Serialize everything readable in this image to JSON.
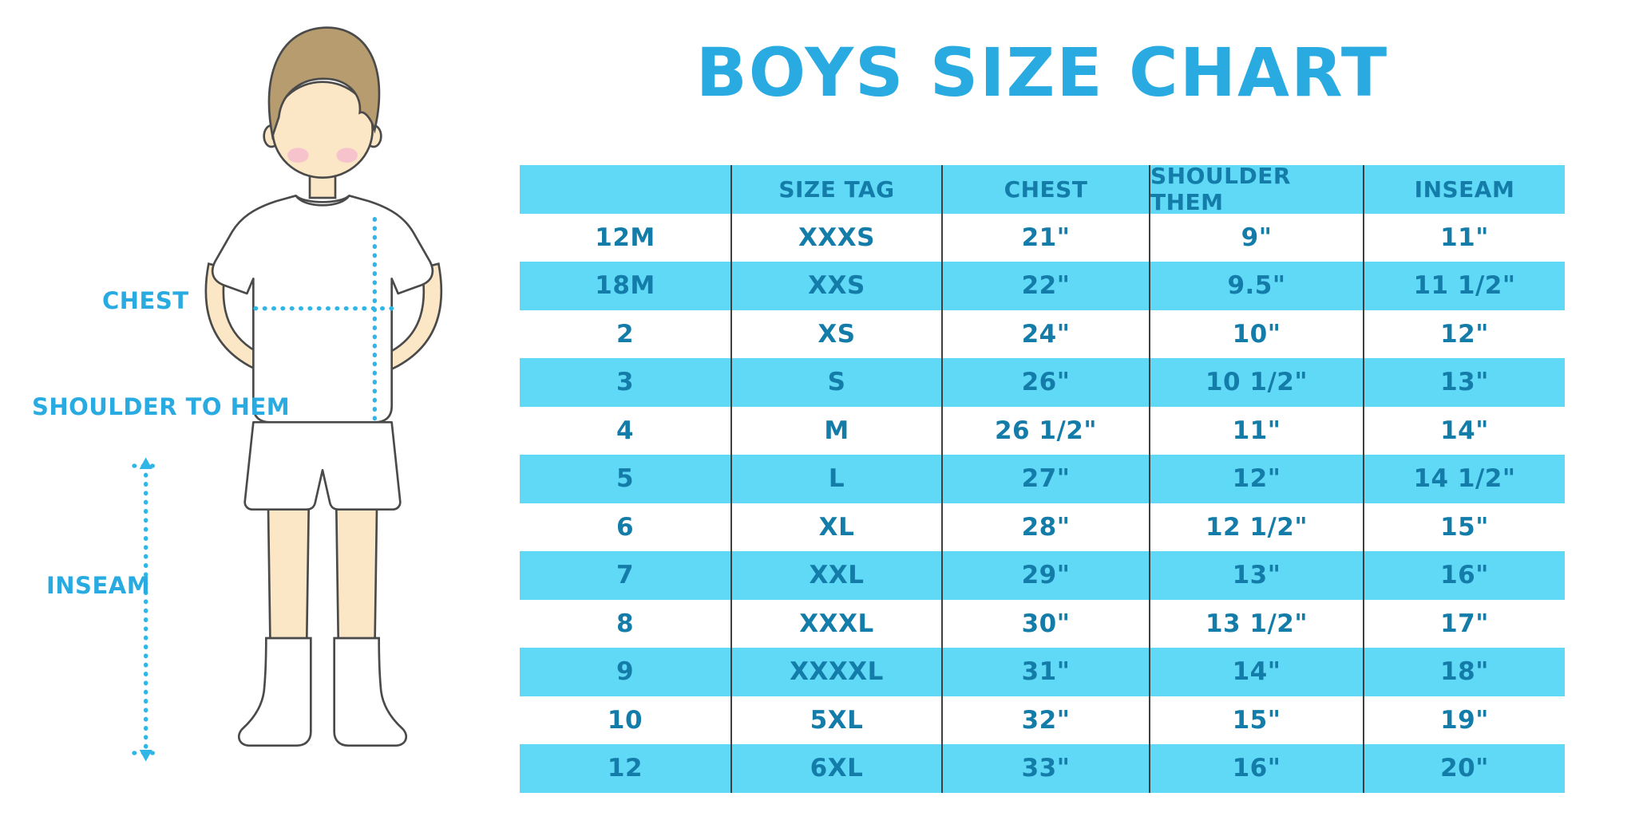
{
  "title": "BOYS SIZE CHART",
  "figure_labels": {
    "chest": "CHEST",
    "shoulder_to_hem": "SHOULDER TO HEM",
    "inseam": "INSEAM"
  },
  "colors": {
    "title_blue": "#29abe2",
    "band_cyan": "#5fd9f6",
    "table_text": "#147ca8",
    "measure_line": "#2fb6e6",
    "skin": "#fbe7c6",
    "hair": "#b79c70",
    "blush": "#f6c3cc"
  },
  "chart_data": {
    "type": "table",
    "title": "BOYS SIZE CHART",
    "columns": [
      "",
      "SIZE TAG",
      "CHEST",
      "SHOULDER THEM",
      "INSEAM"
    ],
    "rows": [
      [
        "12M",
        "XXXS",
        "21\"",
        "9\"",
        "11\""
      ],
      [
        "18M",
        "XXS",
        "22\"",
        "9.5\"",
        "11 1/2\""
      ],
      [
        "2",
        "XS",
        "24\"",
        "10\"",
        "12\""
      ],
      [
        "3",
        "S",
        "26\"",
        "10 1/2\"",
        "13\""
      ],
      [
        "4",
        "M",
        "26 1/2\"",
        "11\"",
        "14\""
      ],
      [
        "5",
        "L",
        "27\"",
        "12\"",
        "14 1/2\""
      ],
      [
        "6",
        "XL",
        "28\"",
        "12 1/2\"",
        "15\""
      ],
      [
        "7",
        "XXL",
        "29\"",
        "13\"",
        "16\""
      ],
      [
        "8",
        "XXXL",
        "30\"",
        "13 1/2\"",
        "17\""
      ],
      [
        "9",
        "XXXXL",
        "31\"",
        "14\"",
        "18\""
      ],
      [
        "10",
        "5XL",
        "32\"",
        "15\"",
        "19\""
      ],
      [
        "12",
        "6XL",
        "33\"",
        "16\"",
        "20\""
      ]
    ],
    "layout": "header row cyan, data rows alternate white/cyan starting white"
  }
}
